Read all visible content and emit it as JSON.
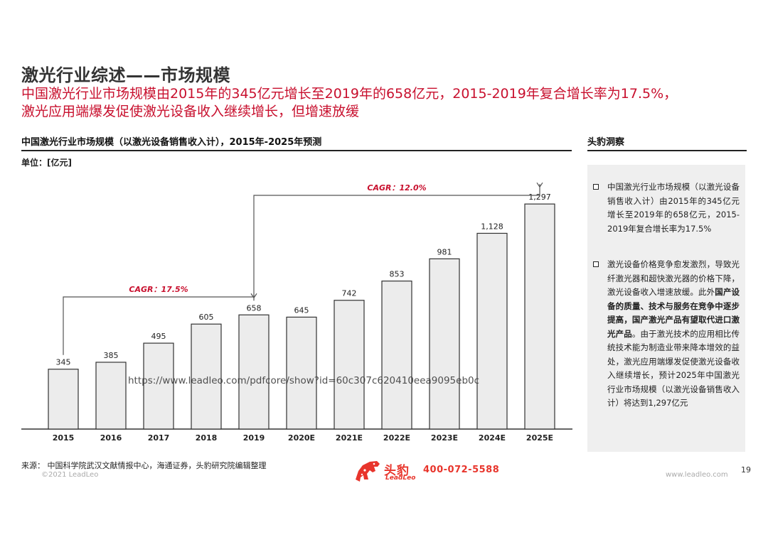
{
  "header": {
    "title": "激光行业综述——市场规模",
    "subtitle_line1": "中国激光行业市场规模由2015年的345亿元增长至2019年的658亿元，2015-2019年复合增长率为17.5%，",
    "subtitle_line2": "激光应用端爆发促使激光设备收入继续增长，但增速放缓"
  },
  "chart_section": {
    "heading": "中国激光行业市场规模（以激光设备销售收入计），2015年-2025年预测",
    "unit_label": "单位：[亿元]"
  },
  "chart_data": {
    "type": "bar",
    "title": "中国激光行业市场规模（以激光设备销售收入计），2015年-2025年预测",
    "ylabel": "单位：[亿元]",
    "xlabel": "",
    "categories": [
      "2015",
      "2016",
      "2017",
      "2018",
      "2019",
      "2020E",
      "2021E",
      "2022E",
      "2023E",
      "2024E",
      "2025E"
    ],
    "values": [
      345,
      385,
      495,
      605,
      658,
      645,
      742,
      853,
      981,
      1128,
      1297
    ],
    "value_labels": [
      "345",
      "385",
      "495",
      "605",
      "658",
      "645",
      "742",
      "853",
      "981",
      "1,128",
      "1,297"
    ],
    "ylim": [
      0,
      1400
    ],
    "grid": false,
    "bar_color": "#ececec",
    "bar_edge": "#333333",
    "annotations": [
      {
        "text": "CAGR：17.5%",
        "from": "2015",
        "to": "2019",
        "color": "#c8102e"
      },
      {
        "text": "CAGR：12.0%",
        "from": "2019",
        "to": "2025E",
        "color": "#c8102e"
      }
    ],
    "watermark_url": "https://www.leadleo.com/pdfcore/show?id=60c307c620410eea9095eb0c"
  },
  "insight": {
    "heading": "头豹洞察",
    "bullet1": "中国激光行业市场规模（以激光设备销售收入计）由2015年的345亿元增长至2019年的658亿元，2015-2019年复合增长率为17.5%",
    "bullet2_part1": "激光设备价格竞争愈发激烈，导致光纤激光器和超快激光器的价格下降，激光设备收入增速放缓。此外",
    "bullet2_bold": "国产设备的质量、技术与服务在竞争中逐步提高，国产激光产品有望取代进口激光产品",
    "bullet2_part2": "。由于激光技术的应用相比传统技术能为制造业带来降本增效的益处，激光应用端爆发促使激光设备收入继续增长，预计2025年中国激光行业市场规模（以激光设备销售收入计）将达到1,297亿元"
  },
  "footer": {
    "source": "来源：  中国科学院武汉文献情报中心，海通证券，头豹研究院编辑整理",
    "copyright": "©2021 LeadLeo",
    "logo_cn": "头豹",
    "logo_en": "LeadLeo",
    "phone": "400-072-5588",
    "website": "www.leadleo.com",
    "page_number": "19"
  },
  "colors": {
    "accent_red": "#c8102e",
    "brand_red": "#e8352c",
    "panel_gray": "#efefef"
  }
}
